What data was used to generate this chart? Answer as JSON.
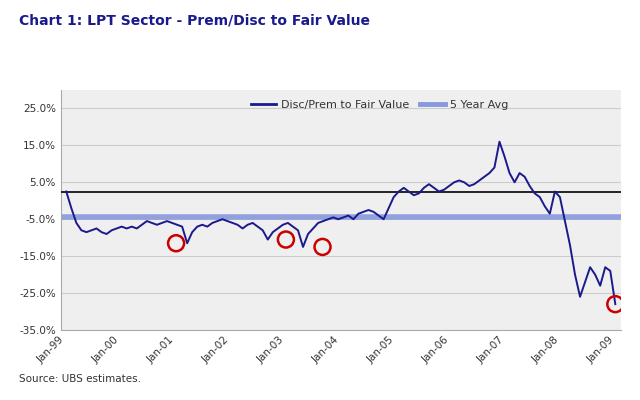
{
  "title": "Chart 1: LPT Sector - Prem/Disc to Fair Value",
  "source_text": "Source: UBS estimates.",
  "legend_label_1": "Disc/Prem to Fair Value",
  "legend_label_2": "5 Year Avg",
  "line_color": "#1a1a8c",
  "avg_line_color": "#8899dd",
  "avg_line_value": -4.5,
  "zero_line_value": 2.5,
  "ylim": [
    -35.0,
    30.0
  ],
  "yticks": [
    -35.0,
    -25.0,
    -15.0,
    -5.0,
    5.0,
    15.0,
    25.0
  ],
  "background_color": "#ffffff",
  "plot_bg_color": "#efefef",
  "grid_color": "#cccccc",
  "title_color": "#1a1a8c",
  "circle_color": "#cc0000",
  "dates_labels": [
    "Jan-99",
    "Jan-00",
    "Jan-01",
    "Jan-02",
    "Jan-03",
    "Jan-04",
    "Jan-05",
    "Jan-06",
    "Jan-07",
    "Jan-08",
    "Jan-09"
  ],
  "values": [
    2.5,
    -2.0,
    -6.0,
    -8.0,
    -8.5,
    -8.0,
    -7.5,
    -8.5,
    -9.0,
    -8.0,
    -7.5,
    -7.0,
    -7.5,
    -7.0,
    -7.5,
    -6.5,
    -5.5,
    -6.0,
    -6.5,
    -6.0,
    -5.5,
    -6.0,
    -6.5,
    -7.0,
    -11.5,
    -8.5,
    -7.0,
    -6.5,
    -7.0,
    -6.0,
    -5.5,
    -5.0,
    -5.5,
    -6.0,
    -6.5,
    -7.5,
    -6.5,
    -6.0,
    -7.0,
    -8.0,
    -10.5,
    -8.5,
    -7.5,
    -6.5,
    -6.0,
    -7.0,
    -8.0,
    -12.5,
    -9.0,
    -7.5,
    -6.0,
    -5.5,
    -5.0,
    -4.5,
    -5.0,
    -4.5,
    -4.0,
    -5.0,
    -3.5,
    -3.0,
    -2.5,
    -3.0,
    -4.0,
    -5.0,
    -2.0,
    1.0,
    2.5,
    3.5,
    2.5,
    1.5,
    2.0,
    3.5,
    4.5,
    3.5,
    2.5,
    3.0,
    4.0,
    5.0,
    5.5,
    5.0,
    4.0,
    4.5,
    5.5,
    6.5,
    7.5,
    9.0,
    16.0,
    12.0,
    7.5,
    5.0,
    7.5,
    6.5,
    4.0,
    2.0,
    1.0,
    -1.5,
    -3.5,
    2.5,
    1.0,
    -5.5,
    -12.0,
    -20.0,
    -26.0,
    -22.0,
    -18.0,
    -20.0,
    -23.0,
    -18.0,
    -19.0,
    -28.0
  ],
  "circle_data": [
    [
      2.0,
      -11.5
    ],
    [
      4.0,
      -10.5
    ],
    [
      4.667,
      -12.5
    ],
    [
      10.0,
      -28.0
    ]
  ]
}
